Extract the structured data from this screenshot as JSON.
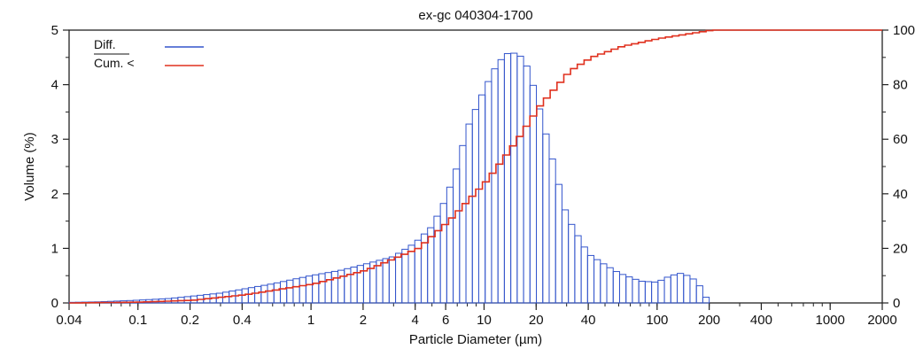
{
  "chart_data": {
    "type": "bar",
    "title": "ex-gc 040304-1700",
    "xlabel": "Particle Diameter (µm)",
    "ylabel": "Volume (%)",
    "y2label": "",
    "x_scale": "log",
    "xlim": [
      0.04,
      2000
    ],
    "ylim": [
      0,
      5
    ],
    "y2lim": [
      0,
      100
    ],
    "x_ticks": [
      {
        "value": 0.04,
        "label": "0.04"
      },
      {
        "value": 0.1,
        "label": "0.1"
      },
      {
        "value": 0.2,
        "label": "0.2"
      },
      {
        "value": 0.4,
        "label": "0.4"
      },
      {
        "value": 1,
        "label": "1"
      },
      {
        "value": 2,
        "label": "2"
      },
      {
        "value": 4,
        "label": "4"
      },
      {
        "value": 6,
        "label": "6"
      },
      {
        "value": 10,
        "label": "10"
      },
      {
        "value": 20,
        "label": "20"
      },
      {
        "value": 40,
        "label": "40"
      },
      {
        "value": 100,
        "label": "100"
      },
      {
        "value": 200,
        "label": "200"
      },
      {
        "value": 400,
        "label": "400"
      },
      {
        "value": 1000,
        "label": "1000"
      },
      {
        "value": 2000,
        "label": "2000"
      }
    ],
    "y_ticks": [
      "0",
      "1",
      "2",
      "3",
      "4",
      "5"
    ],
    "y2_ticks": [
      "0",
      "20",
      "40",
      "60",
      "80",
      "100"
    ],
    "legend": {
      "placement": "top-left",
      "entries": [
        {
          "label": "Diff.",
          "color": "#3355cc"
        },
        {
          "label": "Cum. <",
          "color": "#e0301e"
        }
      ]
    },
    "series": [
      {
        "name": "Diff.",
        "kind": "bars",
        "axis": "left",
        "color": "#3355cc",
        "x": [
          0.04,
          0.06,
          0.1,
          0.15,
          0.2,
          0.3,
          0.4,
          0.6,
          1,
          1.5,
          2,
          3,
          4,
          5,
          6,
          7,
          8,
          10,
          12,
          14,
          16,
          18,
          20,
          25,
          30,
          40,
          50,
          60,
          80,
          100,
          120,
          140,
          170,
          200
        ],
        "values": [
          0.01,
          0.02,
          0.05,
          0.08,
          0.12,
          0.18,
          0.25,
          0.35,
          0.5,
          0.6,
          0.7,
          0.85,
          1.1,
          1.4,
          1.9,
          2.5,
          3.2,
          3.9,
          4.4,
          4.6,
          4.55,
          4.3,
          3.8,
          2.6,
          1.6,
          0.9,
          0.7,
          0.55,
          0.4,
          0.38,
          0.5,
          0.55,
          0.4,
          0.0
        ]
      },
      {
        "name": "Cum. <",
        "kind": "step-line",
        "axis": "right",
        "color": "#e0301e",
        "x": [
          0.04,
          0.1,
          0.2,
          0.4,
          1,
          2,
          4,
          6,
          10,
          15,
          20,
          30,
          40,
          60,
          100,
          200,
          400,
          1000,
          2000
        ],
        "values": [
          0,
          0.3,
          1,
          3,
          7,
          12,
          20,
          30,
          45,
          60,
          72,
          85,
          90,
          94,
          97,
          100,
          100,
          100,
          100
        ]
      }
    ]
  }
}
